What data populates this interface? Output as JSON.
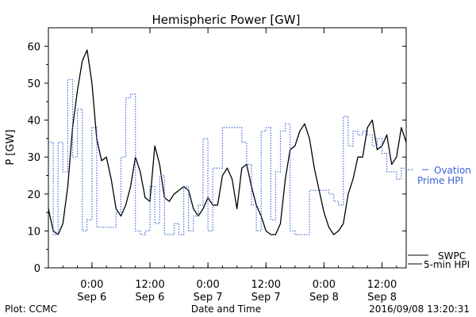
{
  "chart_data": {
    "type": "line",
    "title": "Hemispheric Power [GW]",
    "ylabel": "P [GW]",
    "xlabel": "Date and Time",
    "ylim": [
      0,
      65
    ],
    "y_ticks": [
      0,
      10,
      20,
      30,
      40,
      50,
      60
    ],
    "xlim": [
      "2016-09-05 15:00",
      "2016-09-08 17:00"
    ],
    "x_ticks": [
      {
        "time": "2016-09-06 00:00",
        "top": "0:00",
        "bottom": "Sep 6"
      },
      {
        "time": "2016-09-06 12:00",
        "top": "12:00",
        "bottom": "Sep 6"
      },
      {
        "time": "2016-09-07 00:00",
        "top": "0:00",
        "bottom": "Sep 7"
      },
      {
        "time": "2016-09-07 12:00",
        "top": "12:00",
        "bottom": "Sep 7"
      },
      {
        "time": "2016-09-08 00:00",
        "top": "0:00",
        "bottom": "Sep 8"
      },
      {
        "time": "2016-09-08 12:00",
        "top": "12:00",
        "bottom": "Sep 8"
      }
    ],
    "series": [
      {
        "name": "SWPC 5-min HPI",
        "legend": [
          "SWPC",
          "5-min HPI"
        ],
        "color": "#000000",
        "style": "solid",
        "x": [
          "2016-09-05 15:00",
          "2016-09-05 16:00",
          "2016-09-05 17:00",
          "2016-09-05 18:00",
          "2016-09-05 19:00",
          "2016-09-05 20:00",
          "2016-09-05 21:00",
          "2016-09-05 22:00",
          "2016-09-05 23:00",
          "2016-09-06 00:00",
          "2016-09-06 01:00",
          "2016-09-06 02:00",
          "2016-09-06 03:00",
          "2016-09-06 04:00",
          "2016-09-06 05:00",
          "2016-09-06 06:00",
          "2016-09-06 07:00",
          "2016-09-06 08:00",
          "2016-09-06 09:00",
          "2016-09-06 10:00",
          "2016-09-06 11:00",
          "2016-09-06 12:00",
          "2016-09-06 13:00",
          "2016-09-06 14:00",
          "2016-09-06 15:00",
          "2016-09-06 16:00",
          "2016-09-06 17:00",
          "2016-09-06 18:00",
          "2016-09-06 19:00",
          "2016-09-06 20:00",
          "2016-09-06 21:00",
          "2016-09-06 22:00",
          "2016-09-06 23:00",
          "2016-09-07 00:00",
          "2016-09-07 01:00",
          "2016-09-07 02:00",
          "2016-09-07 03:00",
          "2016-09-07 04:00",
          "2016-09-07 05:00",
          "2016-09-07 06:00",
          "2016-09-07 07:00",
          "2016-09-07 08:00",
          "2016-09-07 09:00",
          "2016-09-07 10:00",
          "2016-09-07 11:00",
          "2016-09-07 12:00",
          "2016-09-07 13:00",
          "2016-09-07 14:00",
          "2016-09-07 15:00",
          "2016-09-07 16:00",
          "2016-09-07 17:00",
          "2016-09-07 18:00",
          "2016-09-07 19:00",
          "2016-09-07 20:00",
          "2016-09-07 21:00",
          "2016-09-07 22:00",
          "2016-09-07 23:00",
          "2016-09-08 00:00",
          "2016-09-08 01:00",
          "2016-09-08 02:00",
          "2016-09-08 03:00",
          "2016-09-08 04:00",
          "2016-09-08 05:00",
          "2016-09-08 06:00",
          "2016-09-08 07:00",
          "2016-09-08 08:00",
          "2016-09-08 09:00",
          "2016-09-08 10:00",
          "2016-09-08 11:00",
          "2016-09-08 12:00",
          "2016-09-08 13:00",
          "2016-09-08 14:00",
          "2016-09-08 15:00",
          "2016-09-08 16:00",
          "2016-09-08 17:00"
        ],
        "values": [
          16,
          10,
          9,
          12,
          22,
          38,
          48,
          56,
          59,
          50,
          35,
          29,
          30,
          24,
          16,
          14,
          17,
          22,
          30,
          26,
          19,
          18,
          33,
          28,
          19,
          18,
          20,
          21,
          22,
          21,
          16,
          14,
          16,
          19,
          17,
          17,
          25,
          27,
          24,
          16,
          27,
          28,
          22,
          17,
          14,
          10,
          9,
          9,
          12,
          24,
          32,
          33,
          37,
          39,
          35,
          27,
          21,
          15,
          11,
          9,
          10,
          12,
          20,
          24,
          30,
          30,
          38,
          40,
          32,
          33,
          36,
          28,
          30,
          38,
          34
        ]
      },
      {
        "name": "Ovation Prime HPI",
        "legend": [
          "Ovation",
          "Prime HPI"
        ],
        "color": "#3a63d6",
        "style": "dotted",
        "x": [
          "2016-09-05 15:00",
          "2016-09-05 16:00",
          "2016-09-05 17:00",
          "2016-09-05 18:00",
          "2016-09-05 19:00",
          "2016-09-05 20:00",
          "2016-09-05 21:00",
          "2016-09-05 22:00",
          "2016-09-05 23:00",
          "2016-09-06 00:00",
          "2016-09-06 01:00",
          "2016-09-06 02:00",
          "2016-09-06 03:00",
          "2016-09-06 04:00",
          "2016-09-06 05:00",
          "2016-09-06 06:00",
          "2016-09-06 07:00",
          "2016-09-06 08:00",
          "2016-09-06 09:00",
          "2016-09-06 10:00",
          "2016-09-06 11:00",
          "2016-09-06 12:00",
          "2016-09-06 13:00",
          "2016-09-06 14:00",
          "2016-09-06 15:00",
          "2016-09-06 16:00",
          "2016-09-06 17:00",
          "2016-09-06 18:00",
          "2016-09-06 19:00",
          "2016-09-06 20:00",
          "2016-09-06 21:00",
          "2016-09-06 22:00",
          "2016-09-06 23:00",
          "2016-09-07 00:00",
          "2016-09-07 01:00",
          "2016-09-07 02:00",
          "2016-09-07 03:00",
          "2016-09-07 04:00",
          "2016-09-07 05:00",
          "2016-09-07 06:00",
          "2016-09-07 07:00",
          "2016-09-07 08:00",
          "2016-09-07 09:00",
          "2016-09-07 10:00",
          "2016-09-07 11:00",
          "2016-09-07 12:00",
          "2016-09-07 13:00",
          "2016-09-07 14:00",
          "2016-09-07 15:00",
          "2016-09-07 16:00",
          "2016-09-07 17:00",
          "2016-09-07 18:00",
          "2016-09-07 19:00",
          "2016-09-07 20:00",
          "2016-09-07 21:00",
          "2016-09-07 22:00",
          "2016-09-07 23:00",
          "2016-09-08 00:00",
          "2016-09-08 01:00",
          "2016-09-08 02:00",
          "2016-09-08 03:00",
          "2016-09-08 04:00",
          "2016-09-08 05:00",
          "2016-09-08 06:00",
          "2016-09-08 07:00",
          "2016-09-08 08:00",
          "2016-09-08 09:00",
          "2016-09-08 10:00",
          "2016-09-08 11:00",
          "2016-09-08 12:00",
          "2016-09-08 13:00",
          "2016-09-08 14:00",
          "2016-09-08 15:00",
          "2016-09-08 16:00",
          "2016-09-08 17:00"
        ],
        "values": [
          34,
          9,
          34,
          26,
          51,
          30,
          43,
          10,
          13,
          38,
          11,
          11,
          11,
          11,
          15,
          30,
          46,
          47,
          10,
          9,
          10,
          22,
          12,
          25,
          9,
          9,
          12,
          9,
          22,
          10,
          14,
          17,
          35,
          10,
          27,
          27,
          38,
          38,
          38,
          38,
          34,
          28,
          17,
          10,
          37,
          38,
          13,
          26,
          37,
          39,
          10,
          9,
          9,
          9,
          21,
          21,
          21,
          21,
          20,
          18,
          17,
          41,
          33,
          37,
          36,
          37,
          36,
          33,
          35,
          31,
          26,
          26,
          24,
          27,
          27
        ]
      }
    ]
  },
  "footer": {
    "plot_credit": "Plot: CCMC",
    "timestamp": "2016/09/08 13:20:31"
  }
}
